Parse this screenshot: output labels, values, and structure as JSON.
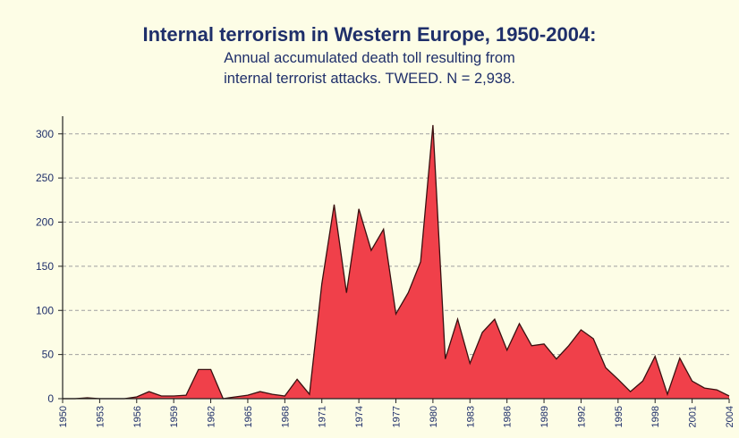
{
  "chart_data": {
    "type": "area",
    "title": "Internal terrorism in Western Europe, 1950-2004:",
    "subtitle_lines": [
      "Annual accumulated death toll resulting from",
      "internal terrorist attacks. TWEED. N = 2,938."
    ],
    "xlabel": "",
    "ylabel": "",
    "xlim": [
      1950,
      2004
    ],
    "ylim": [
      0,
      300
    ],
    "y_ticks": [
      0,
      50,
      100,
      150,
      200,
      250,
      300
    ],
    "x_ticks": [
      1950,
      1953,
      1956,
      1959,
      1962,
      1965,
      1968,
      1971,
      1974,
      1977,
      1980,
      1983,
      1986,
      1989,
      1992,
      1995,
      1998,
      2001,
      2004
    ],
    "grid": "horizontal dashed",
    "legend": "none",
    "fill_color": "#f0404a",
    "line_color": "#3a1010",
    "x": [
      1950,
      1951,
      1952,
      1953,
      1954,
      1955,
      1956,
      1957,
      1958,
      1959,
      1960,
      1961,
      1962,
      1963,
      1964,
      1965,
      1966,
      1967,
      1968,
      1969,
      1970,
      1971,
      1972,
      1973,
      1974,
      1975,
      1976,
      1977,
      1978,
      1979,
      1980,
      1981,
      1982,
      1983,
      1984,
      1985,
      1986,
      1987,
      1988,
      1989,
      1990,
      1991,
      1992,
      1993,
      1994,
      1995,
      1996,
      1997,
      1998,
      1999,
      2000,
      2001,
      2002,
      2003,
      2004
    ],
    "values": [
      0,
      0,
      1,
      0,
      0,
      0,
      2,
      8,
      3,
      3,
      4,
      33,
      33,
      0,
      2,
      4,
      8,
      5,
      3,
      22,
      5,
      130,
      220,
      120,
      215,
      168,
      192,
      96,
      120,
      155,
      310,
      45,
      90,
      40,
      75,
      90,
      55,
      85,
      60,
      62,
      45,
      60,
      78,
      68,
      35,
      22,
      8,
      20,
      48,
      5,
      46,
      20,
      12,
      10,
      3
    ]
  }
}
